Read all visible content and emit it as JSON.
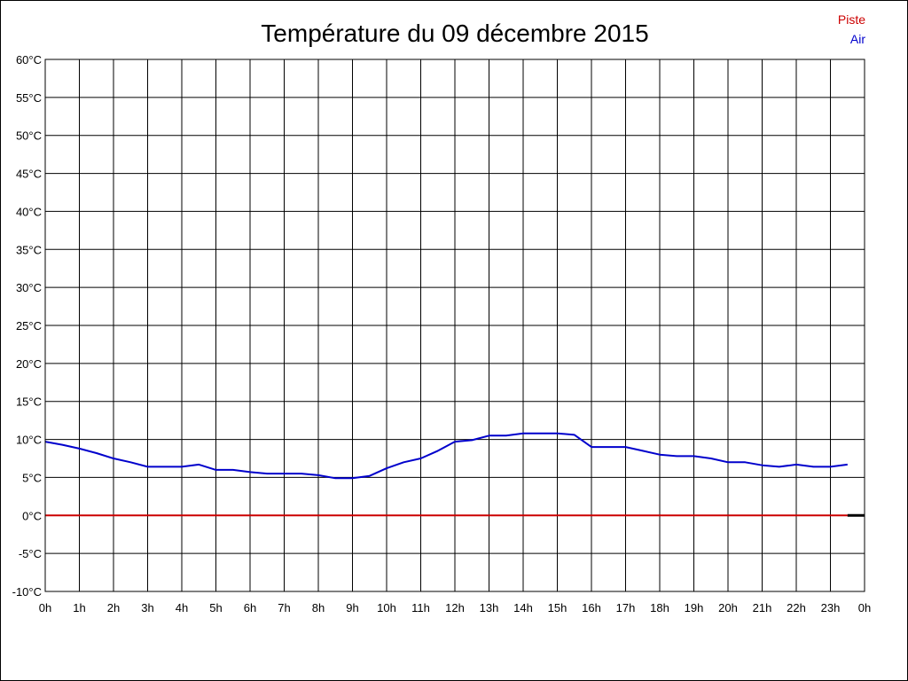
{
  "chart_data": {
    "type": "line",
    "title": "Température du 09 décembre 2015",
    "xlabel": "",
    "ylabel": "",
    "grid": true,
    "legend_placement": "top-right",
    "xlim": [
      0,
      24
    ],
    "ylim": [
      -10,
      60
    ],
    "x_ticks": [
      0,
      1,
      2,
      3,
      4,
      5,
      6,
      7,
      8,
      9,
      10,
      11,
      12,
      13,
      14,
      15,
      16,
      17,
      18,
      19,
      20,
      21,
      22,
      23,
      24
    ],
    "x_tick_labels": [
      "0h",
      "1h",
      "2h",
      "3h",
      "4h",
      "5h",
      "6h",
      "7h",
      "8h",
      "9h",
      "10h",
      "11h",
      "12h",
      "13h",
      "14h",
      "15h",
      "16h",
      "17h",
      "18h",
      "19h",
      "20h",
      "21h",
      "22h",
      "23h",
      "0h"
    ],
    "y_ticks": [
      -10,
      -5,
      0,
      5,
      10,
      15,
      20,
      25,
      30,
      35,
      40,
      45,
      50,
      55,
      60
    ],
    "y_tick_labels": [
      "-10°C",
      "-5°C",
      "0°C",
      "5°C",
      "10°C",
      "15°C",
      "20°C",
      "25°C",
      "30°C",
      "35°C",
      "40°C",
      "45°C",
      "50°C",
      "55°C",
      "60°C"
    ],
    "series": [
      {
        "name": "Piste",
        "color": "#cc0000",
        "x": [
          0,
          23.5
        ],
        "y": [
          0,
          0
        ]
      },
      {
        "name": "Air",
        "color": "#0000cc",
        "x": [
          0,
          0.5,
          1,
          1.5,
          2,
          2.5,
          3,
          3.5,
          4,
          4.5,
          5,
          5.5,
          6,
          6.5,
          7,
          7.5,
          8,
          8.5,
          9,
          9.5,
          10,
          10.5,
          11,
          11.5,
          12,
          12.5,
          13,
          13.5,
          14,
          14.5,
          15,
          15.5,
          16,
          16.5,
          17,
          17.5,
          18,
          18.5,
          19,
          19.5,
          20,
          20.5,
          21,
          21.5,
          22,
          22.5,
          23,
          23.5
        ],
        "y": [
          9.7,
          9.3,
          8.8,
          8.2,
          7.5,
          7.0,
          6.4,
          6.4,
          6.4,
          6.7,
          6.0,
          6.0,
          5.7,
          5.5,
          5.5,
          5.5,
          5.3,
          4.9,
          4.9,
          5.2,
          6.2,
          7.0,
          7.5,
          8.5,
          9.7,
          9.9,
          10.5,
          10.5,
          10.8,
          10.8,
          10.8,
          10.6,
          9.0,
          9.0,
          9.0,
          8.5,
          8.0,
          7.8,
          7.8,
          7.5,
          7.0,
          7.0,
          6.6,
          6.4,
          6.7,
          6.4,
          6.4,
          6.7
        ]
      }
    ]
  }
}
